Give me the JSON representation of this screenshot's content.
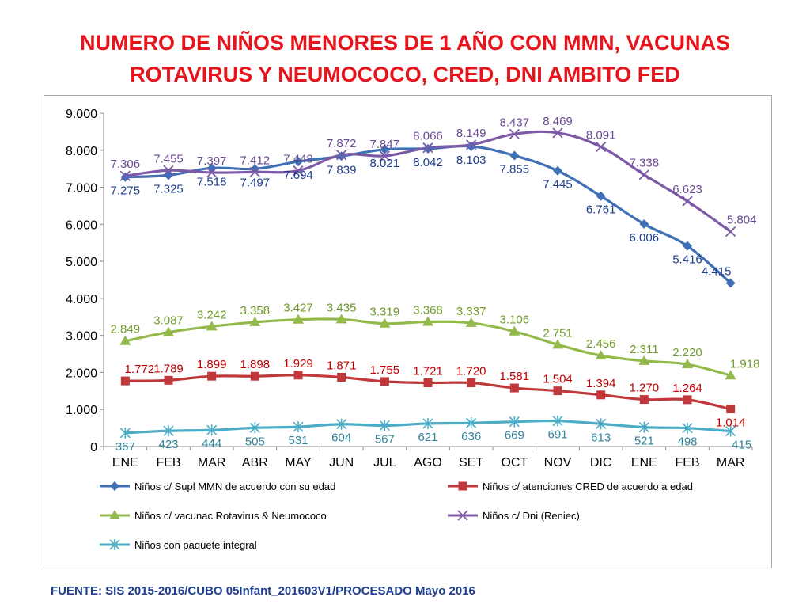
{
  "title": {
    "line1": "NUMERO DE NIÑOS MENORES DE 1 AÑO CON MMN, VACUNAS",
    "line2": "ROTAVIRUS Y NEUMOCOCO, CRED, DNI AMBITO FED"
  },
  "source": "FUENTE: SIS 2015-2016/CUBO 05Infant_201603V1/PROCESADO Mayo 2016",
  "chart_data": {
    "type": "line",
    "categories": [
      "ENE",
      "FEB",
      "MAR",
      "ABR",
      "MAY",
      "JUN",
      "JUL",
      "AGO",
      "SET",
      "OCT",
      "NOV",
      "DIC",
      "ENE",
      "FEB",
      "MAR"
    ],
    "ylim": [
      0,
      9000
    ],
    "yticks": [
      0,
      1000,
      2000,
      3000,
      4000,
      5000,
      6000,
      7000,
      8000,
      9000
    ],
    "ytick_labels": [
      "0",
      "1.000",
      "2.000",
      "3.000",
      "4.000",
      "5.000",
      "6.000",
      "7.000",
      "8.000",
      "9.000"
    ],
    "grid": false,
    "legend_position": "bottom",
    "series": [
      {
        "name": "Niños c/ Supl MMN de acuerdo con su edad",
        "color": "#3f6fb5",
        "label_color": "#1f3f8f",
        "marker": "diamond",
        "values": [
          7275,
          7325,
          7518,
          7497,
          7694,
          7839,
          8021,
          8042,
          8103,
          7855,
          7445,
          6761,
          6006,
          5416,
          4415
        ],
        "labels": [
          "7.275",
          "7.325",
          "7.518",
          "7.497",
          "7.694",
          "7.839",
          "8.021",
          "8.042",
          "8.103",
          "7.855",
          "7.445",
          "6.761",
          "6.006",
          "5.416",
          "4.415"
        ]
      },
      {
        "name": "Niños c/ atenciones CRED de acuerdo a edad",
        "color": "#c0383a",
        "label_color": "#c00000",
        "marker": "square",
        "values": [
          1772,
          1789,
          1899,
          1898,
          1929,
          1871,
          1755,
          1721,
          1720,
          1581,
          1504,
          1394,
          1270,
          1264,
          1014
        ],
        "labels": [
          "1.772",
          "1.789",
          "1.899",
          "1.898",
          "1.929",
          "1.871",
          "1.755",
          "1.721",
          "1.720",
          "1.581",
          "1.504",
          "1.394",
          "1.270",
          "1.264",
          "1.014"
        ]
      },
      {
        "name": "Niños c/ vacunac Rotavirus & Neumococo",
        "color": "#92b94a",
        "label_color": "#6f9b2a",
        "marker": "triangle",
        "values": [
          2849,
          3087,
          3242,
          3358,
          3427,
          3435,
          3319,
          3368,
          3337,
          3106,
          2751,
          2456,
          2311,
          2220,
          1918
        ],
        "labels": [
          "2.849",
          "3.087",
          "3.242",
          "3.358",
          "3.427",
          "3.435",
          "3.319",
          "3.368",
          "3.337",
          "3.106",
          "2.751",
          "2.456",
          "2.311",
          "2.220",
          "1.918"
        ]
      },
      {
        "name": "Niños c/ Dni (Reniec)",
        "color": "#7c5aa6",
        "label_color": "#6a4a94",
        "marker": "x",
        "values": [
          7306,
          7455,
          7397,
          7412,
          7448,
          7872,
          7847,
          8066,
          8149,
          8437,
          8469,
          8091,
          7338,
          6623,
          5804
        ],
        "labels": [
          "7.306",
          "7.455",
          "7.397",
          "7.412",
          "7.448",
          "7.872",
          "7.847",
          "8.066",
          "8.149",
          "8.437",
          "8.469",
          "8.091",
          "7.338",
          "6.623",
          "5.804"
        ]
      },
      {
        "name": "Niños con paquete integral",
        "color": "#4bacc6",
        "label_color": "#31849b",
        "marker": "star",
        "values": [
          367,
          423,
          444,
          505,
          531,
          604,
          567,
          621,
          636,
          669,
          691,
          613,
          521,
          498,
          415
        ],
        "labels": [
          "367",
          "423",
          "444",
          "505",
          "531",
          "604",
          "567",
          "621",
          "636",
          "669",
          "691",
          "613",
          "521",
          "498",
          "415"
        ]
      }
    ]
  }
}
